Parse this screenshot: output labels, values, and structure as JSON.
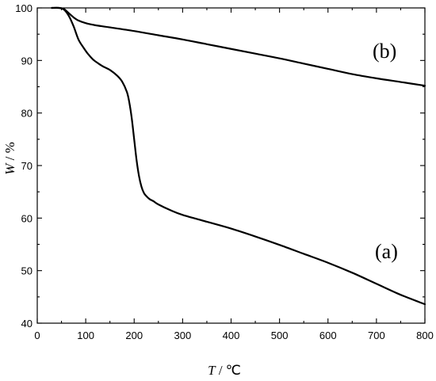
{
  "chart_data": {
    "type": "line",
    "xlabel_var": "T",
    "xlabel_unit": "/ ℃",
    "ylabel_var": "W",
    "ylabel_unit": "/ %",
    "xlim": [
      0,
      800
    ],
    "ylim": [
      40,
      100
    ],
    "x_ticks": [
      0,
      100,
      200,
      300,
      400,
      500,
      600,
      700,
      800
    ],
    "y_ticks": [
      40,
      50,
      60,
      70,
      80,
      90,
      100
    ],
    "x_tick_labels": [
      "0",
      "100",
      "200",
      "300",
      "400",
      "500",
      "600",
      "700",
      "800"
    ],
    "y_tick_labels": [
      "40",
      "50",
      "60",
      "70",
      "80",
      "90",
      "100"
    ],
    "grid": false,
    "legend": "none",
    "series": [
      {
        "name": "(a)",
        "x": [
          30,
          45,
          55,
          65,
          75,
          85,
          95,
          105,
          115,
          125,
          135,
          150,
          165,
          175,
          185,
          190,
          195,
          200,
          205,
          210,
          215,
          220,
          225,
          232,
          240,
          250,
          275,
          300,
          350,
          400,
          450,
          500,
          550,
          600,
          650,
          700,
          750,
          800
        ],
        "y": [
          100,
          100,
          99.7,
          98.5,
          96.5,
          94.0,
          92.5,
          91.2,
          90.2,
          89.5,
          88.9,
          88.2,
          87.1,
          86.0,
          84.0,
          82.0,
          79.0,
          75.0,
          71.0,
          68.0,
          66.0,
          64.8,
          64.2,
          63.6,
          63.2,
          62.6,
          61.5,
          60.6,
          59.3,
          58.0,
          56.5,
          54.9,
          53.2,
          51.5,
          49.6,
          47.5,
          45.4,
          43.6
        ]
      },
      {
        "name": "(b)",
        "x": [
          30,
          45,
          55,
          65,
          75,
          85,
          100,
          120,
          150,
          200,
          250,
          300,
          350,
          400,
          450,
          500,
          550,
          600,
          650,
          700,
          750,
          800
        ],
        "y": [
          100,
          100,
          99.8,
          99.0,
          98.2,
          97.6,
          97.1,
          96.7,
          96.3,
          95.6,
          94.8,
          94.0,
          93.1,
          92.2,
          91.3,
          90.4,
          89.4,
          88.4,
          87.4,
          86.6,
          85.9,
          85.2
        ]
      }
    ]
  }
}
